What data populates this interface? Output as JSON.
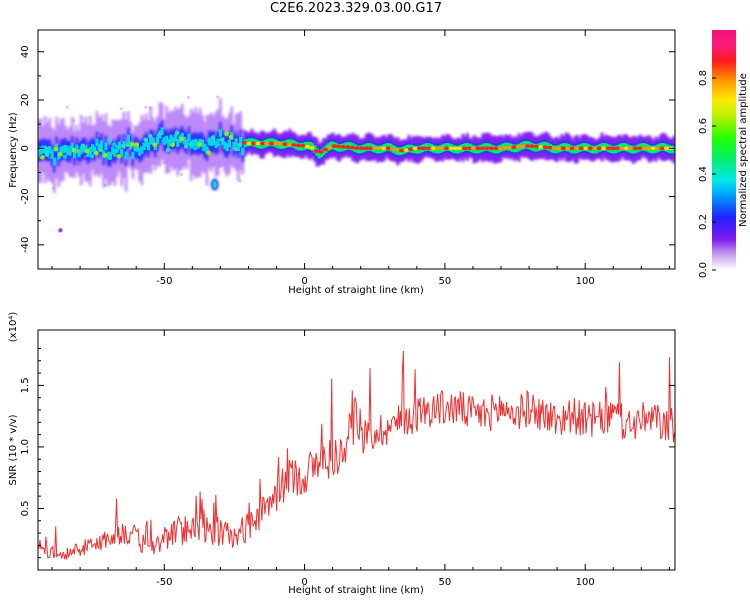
{
  "title": "C2E6.2023.329.03.00.G17",
  "colorbar": {
    "label": "Normalized spectral amplitude",
    "ticks": [
      "0.0",
      "0.2",
      "0.4",
      "0.6",
      "0.8"
    ],
    "tick_values": [
      0.0,
      0.2,
      0.4,
      0.6,
      0.8
    ],
    "range": [
      0,
      1
    ],
    "colormap": "gist_ncar-like (white→purple→blue→cyan→green→yellow→orange→red→magenta)"
  },
  "chart_data": [
    {
      "type": "heatmap",
      "xlabel": "Height of straight line (km)",
      "ylabel": "Frequency (Hz)",
      "xlim": [
        -95,
        132
      ],
      "ylim": [
        -50,
        49
      ],
      "xticks": [
        "-50",
        "0",
        "50",
        "100"
      ],
      "xtick_values": [
        -50,
        0,
        50,
        100
      ],
      "yticks": [
        "-40",
        "-20",
        "0",
        "20",
        "40"
      ],
      "ytick_values": [
        -40,
        -20,
        0,
        20,
        40
      ],
      "ridge": {
        "description": "Doppler frequency ridge (peak normalized amplitude ≈1) vs height",
        "height_km": [
          -95,
          -80,
          -70,
          -60,
          -50,
          -40,
          -33,
          -30,
          -20,
          -10,
          0,
          3,
          5,
          10,
          20,
          30,
          35,
          40,
          50,
          60,
          70,
          80,
          90,
          100,
          110,
          120,
          132
        ],
        "frequency_hz": [
          -3,
          0,
          -1,
          1,
          4,
          2,
          0,
          4,
          2,
          2,
          1,
          0,
          -2,
          1,
          0,
          0,
          -1,
          0,
          0,
          0,
          0,
          1,
          0,
          0,
          0,
          0,
          0
        ]
      },
      "spread_note": "Broad noisy spread below about -25 km; narrow stable ridge near 0 Hz above about -20 km",
      "outlier": {
        "height_km": -32,
        "frequency_hz": -15
      }
    },
    {
      "type": "line",
      "xlabel": "Height of straight line (km)",
      "ylabel": "SNR (10 * v/v)",
      "scale_label": "(x10⁴)",
      "xlim": [
        -95,
        132
      ],
      "ylim": [
        0,
        1.95
      ],
      "xticks": [
        "-50",
        "0",
        "50",
        "100"
      ],
      "xtick_values": [
        -50,
        0,
        50,
        100
      ],
      "yticks": [
        "0.5",
        "1.0",
        "1.5"
      ],
      "ytick_values": [
        0.5,
        1.0,
        1.5
      ],
      "color": "#ee3030",
      "series": [
        {
          "x": [
            -95,
            -85,
            -75,
            -65,
            -60,
            -55,
            -50,
            -45,
            -40,
            -35,
            -30,
            -25,
            -20,
            -15,
            -10,
            -5,
            0,
            5,
            10,
            15,
            20,
            25,
            30,
            35,
            40,
            45,
            50,
            55,
            60,
            65,
            70,
            75,
            80,
            85,
            90,
            95,
            100,
            105,
            110,
            115,
            120,
            125,
            130
          ],
          "values": [
            0.15,
            0.13,
            0.2,
            0.3,
            0.25,
            0.15,
            0.25,
            0.3,
            0.35,
            0.3,
            0.3,
            0.25,
            0.35,
            0.45,
            0.6,
            0.75,
            0.75,
            0.85,
            0.9,
            0.95,
            1.05,
            1.1,
            1.15,
            1.2,
            1.25,
            1.3,
            1.3,
            1.3,
            1.25,
            1.25,
            1.3,
            1.25,
            1.3,
            1.25,
            1.2,
            1.25,
            1.2,
            1.2,
            1.25,
            1.15,
            1.2,
            1.2,
            1.15
          ],
          "noise_amplitude": [
            0.1,
            0.1,
            0.15,
            0.2,
            0.2,
            0.15,
            0.2,
            0.25,
            0.25,
            0.25,
            0.25,
            0.2,
            0.25,
            0.25,
            0.3,
            0.3,
            0.35,
            0.35,
            0.35,
            0.3,
            0.3,
            0.3,
            0.3,
            0.3,
            0.3,
            0.3,
            0.3,
            0.3,
            0.3,
            0.3,
            0.3,
            0.3,
            0.3,
            0.3,
            0.3,
            0.3,
            0.3,
            0.3,
            0.3,
            0.3,
            0.3,
            0.3,
            0.3
          ]
        }
      ]
    }
  ]
}
